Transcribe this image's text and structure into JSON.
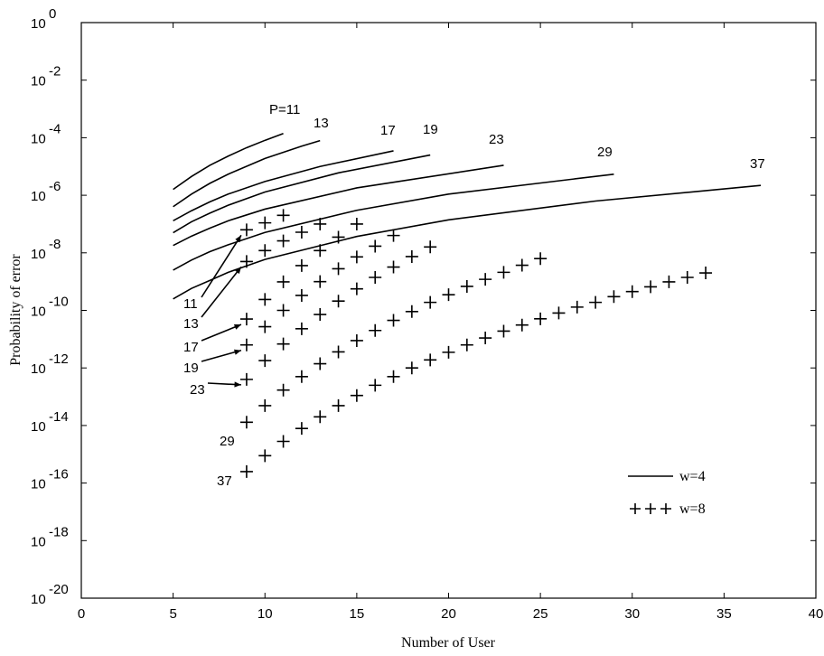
{
  "chart_data": {
    "type": "line",
    "xlabel": "Number of User",
    "ylabel": "Probability of error",
    "log_y": true,
    "xlim": [
      0,
      40
    ],
    "xticks": [
      0,
      5,
      10,
      15,
      20,
      25,
      30,
      35,
      40
    ],
    "ylim": [
      1e-20,
      1
    ],
    "yticks": [
      {
        "value": 1e-20,
        "label": "10",
        "exponent": "-20"
      },
      {
        "value": 1e-18,
        "label": "10",
        "exponent": "-18"
      },
      {
        "value": 1e-16,
        "label": "10",
        "exponent": "-16"
      },
      {
        "value": 1e-14,
        "label": "10",
        "exponent": "-14"
      },
      {
        "value": 1e-12,
        "label": "10",
        "exponent": "-12"
      },
      {
        "value": 1e-10,
        "label": "10",
        "exponent": "-10"
      },
      {
        "value": 1e-08,
        "label": "10",
        "exponent": "-8"
      },
      {
        "value": 1e-06,
        "label": "10",
        "exponent": "-6"
      },
      {
        "value": 0.0001,
        "label": "10",
        "exponent": "-4"
      },
      {
        "value": 0.01,
        "label": "10",
        "exponent": "-2"
      },
      {
        "value": 1,
        "label": "10",
        "exponent": "0"
      }
    ],
    "legend": "lower right",
    "series": [
      {
        "name": "w=4",
        "style": "line",
        "color": "#000000",
        "curves": [
          {
            "label": "P=11",
            "x": [
              5,
              6,
              7,
              8,
              9,
              10,
              11
            ],
            "values": [
              1.6e-06,
              4.5e-06,
              1.1e-05,
              2.3e-05,
              4.5e-05,
              8.1e-05,
              0.00014
            ]
          },
          {
            "label": "13",
            "x": [
              5,
              6,
              7,
              8,
              10,
              12,
              13
            ],
            "values": [
              4e-07,
              1.1e-06,
              2.6e-06,
              5.4e-06,
              1.9e-05,
              5.1e-05,
              7.9e-05
            ]
          },
          {
            "label": "17",
            "x": [
              5,
              6,
              7,
              8,
              10,
              13,
              17
            ],
            "values": [
              1.3e-07,
              2.9e-07,
              5.9e-07,
              1.1e-06,
              3e-06,
              1e-05,
              3.5e-05
            ]
          },
          {
            "label": "19",
            "x": [
              5,
              6,
              7,
              8,
              10,
              14,
              19
            ],
            "values": [
              5e-08,
              1.2e-07,
              2.4e-07,
              4.5e-07,
              1.3e-06,
              6e-06,
              2.5e-05
            ]
          },
          {
            "label": "23",
            "x": [
              5,
              6,
              7,
              8,
              10,
              15,
              23
            ],
            "values": [
              1.8e-08,
              3.8e-08,
              7.2e-08,
              1.3e-07,
              3.3e-07,
              1.8e-06,
              1.1e-05
            ]
          },
          {
            "label": "29",
            "x": [
              5,
              6,
              7,
              8,
              10,
              15,
              20,
              29
            ],
            "values": [
              2.5e-09,
              5.6e-09,
              1.1e-08,
              1.9e-08,
              5.1e-08,
              3e-07,
              1.1e-06,
              5.4e-06
            ]
          },
          {
            "label": "37",
            "x": [
              5,
              6,
              7,
              8,
              10,
              15,
              20,
              28,
              37
            ],
            "values": [
              2.5e-10,
              5.8e-10,
              1.1e-09,
              2.1e-09,
              5.9e-09,
              3.7e-08,
              1.4e-07,
              6.3e-07,
              2.2e-06
            ]
          }
        ]
      },
      {
        "name": "w=8",
        "style": "plus",
        "color": "#000000",
        "curves": [
          {
            "label": "11",
            "x": [
              9,
              10,
              11
            ],
            "values": [
              6.3e-08,
              1.1e-07,
              2e-07
            ]
          },
          {
            "label": "13",
            "x": [
              9,
              10,
              11,
              12,
              13
            ],
            "values": [
              5e-09,
              1.2e-08,
              2.6e-08,
              5.2e-08,
              1e-07
            ]
          },
          {
            "label": "17",
            "x": [
              9,
              10,
              11,
              12,
              13,
              14,
              15
            ],
            "values": [
              5e-11,
              2.4e-10,
              9.8e-10,
              3.6e-09,
              1.2e-08,
              3.5e-08,
              1e-07
            ]
          },
          {
            "label": "19",
            "x": [
              9,
              10,
              11,
              12,
              13,
              14,
              15,
              16,
              17
            ],
            "values": [
              6.3e-12,
              2.7e-11,
              1e-10,
              3.3e-10,
              1e-09,
              2.8e-09,
              7.2e-09,
              1.7e-08,
              4e-08
            ]
          },
          {
            "label": "23",
            "x": [
              9,
              10,
              11,
              12,
              13,
              14,
              15,
              16,
              17,
              18,
              19
            ],
            "values": [
              4e-13,
              1.8e-12,
              6.8e-12,
              2.3e-11,
              7.2e-11,
              2.1e-10,
              5.6e-10,
              1.4e-09,
              3.2e-09,
              7.4e-09,
              1.6e-08
            ]
          },
          {
            "label": "29",
            "x": [
              9,
              10,
              11,
              12,
              13,
              14,
              15,
              16,
              17,
              18,
              19,
              20,
              21,
              22,
              23,
              24,
              25
            ],
            "values": [
              1.3e-14,
              4.9e-14,
              1.7e-13,
              5e-13,
              1.4e-12,
              3.6e-12,
              8.9e-12,
              2e-11,
              4.5e-11,
              9.1e-11,
              1.9e-10,
              3.5e-10,
              6.8e-10,
              1.2e-09,
              2.1e-09,
              3.7e-09,
              6.3e-09
            ]
          },
          {
            "label": "37",
            "x": [
              9,
              10,
              11,
              12,
              13,
              14,
              15,
              16,
              17,
              18,
              19,
              20,
              21,
              22,
              23,
              24,
              25,
              26,
              27,
              28,
              29,
              30,
              31,
              32,
              33,
              34
            ],
            "values": [
              2.5e-16,
              8.9e-16,
              2.8e-15,
              7.9e-15,
              2e-14,
              4.9e-14,
              1.1e-13,
              2.5e-13,
              5e-13,
              1e-12,
              1.9e-12,
              3.5e-12,
              6.3e-12,
              1.1e-11,
              1.9e-11,
              3.1e-11,
              5.1e-11,
              8.1e-11,
              1.3e-10,
              1.9e-10,
              3e-10,
              4.5e-10,
              6.6e-10,
              9.8e-10,
              1.4e-09,
              2e-09
            ]
          }
        ]
      }
    ]
  }
}
